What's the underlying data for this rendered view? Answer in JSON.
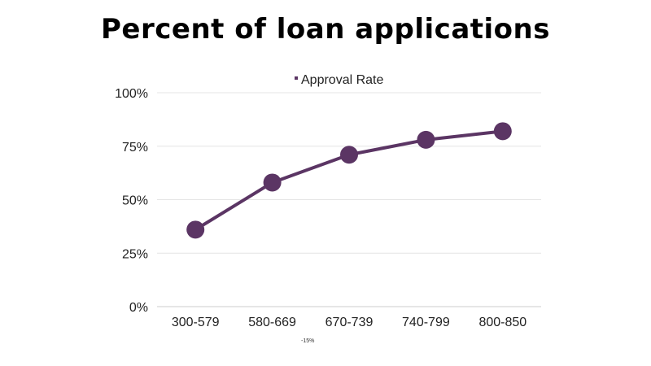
{
  "chart_data": {
    "type": "line",
    "title": "Percent of loan applications",
    "categories": [
      "300-579",
      "580-669",
      "670-739",
      "740-799",
      "800-850"
    ],
    "series": [
      {
        "name": "Approval Rate",
        "values": [
          36,
          58,
          71,
          78,
          82
        ]
      }
    ],
    "yticks": [
      "0%",
      "25%",
      "50%",
      "75%",
      "100%"
    ],
    "ylim": [
      0,
      100
    ],
    "grid": true,
    "legend": "top-center",
    "annotation": "-15%",
    "colors": {
      "series": "#5b3564",
      "grid": "#e4e4e4",
      "axis": "#cccccc"
    }
  }
}
